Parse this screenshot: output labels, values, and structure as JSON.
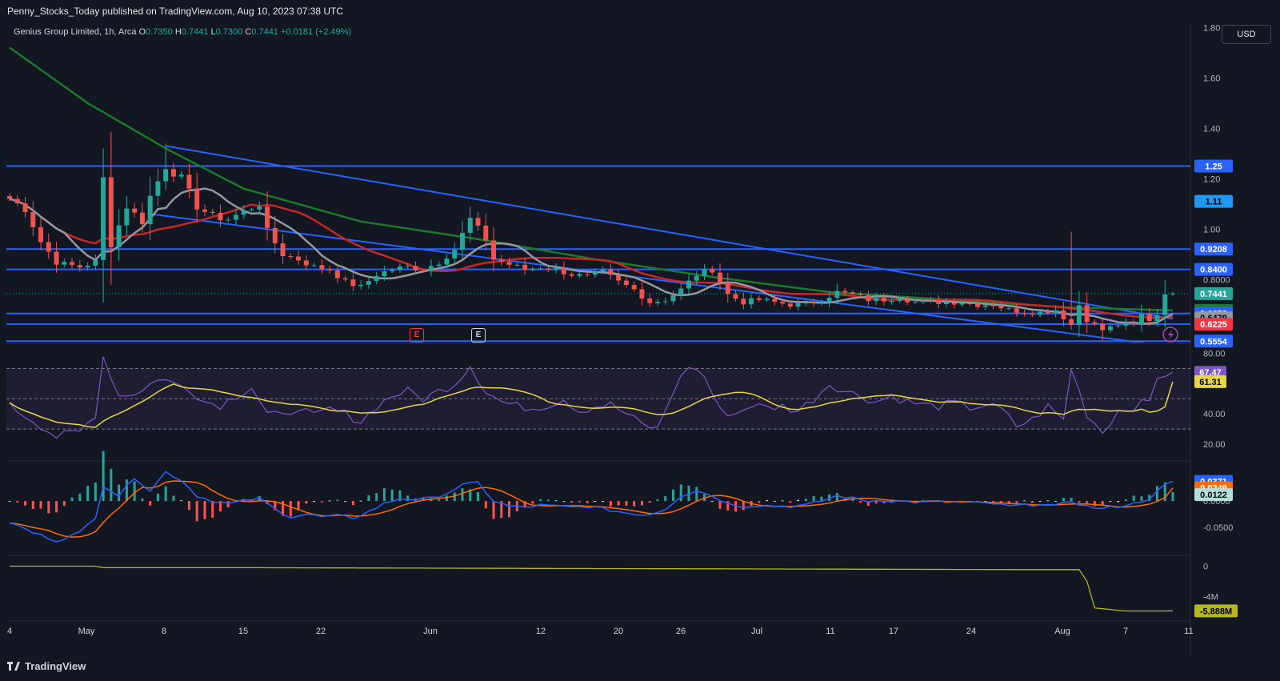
{
  "header": {
    "published": "Penny_Stocks_Today published on TradingView.com, Aug 10, 2023 07:38 UTC"
  },
  "legend": {
    "symbol": "Genius Group Limited, 1h, Arca",
    "o_label": "O",
    "o": "0.7350",
    "h_label": "H",
    "h": "0.7441",
    "l_label": "L",
    "l": "0.7300",
    "c_label": "C",
    "c": "0.7441",
    "change": "+0.0181 (+2.49%)"
  },
  "currency_button": "USD",
  "footer": {
    "brand": "TradingView"
  },
  "events": [
    {
      "label": "E",
      "x": 520,
      "y": 418,
      "color": "#f23645",
      "border": "#f23645"
    },
    {
      "label": "E",
      "x": 597,
      "y": 418,
      "color": "#d1d4dc",
      "border": "#d1d4dc"
    }
  ],
  "colors": {
    "up": "#26a69a",
    "down": "#ef5350",
    "ma_gray": "#9598a1",
    "ma_red": "#c62828",
    "ma_green": "#1b7a2c",
    "level": "#2962ff",
    "rsi": "#7e57c2",
    "rsi_ma": "#e6d643",
    "macd": "#2962ff",
    "signal": "#ff6d00",
    "volume_line": "#b5b71b"
  },
  "chart_data": {
    "type": "candlestick",
    "title": "Genius Group Limited, 1h, Arca",
    "x_tick_labels": [
      "4",
      "May",
      "8",
      "15",
      "22",
      "Jun",
      "12",
      "20",
      "26",
      "Jul",
      "11",
      "17",
      "24",
      "Aug",
      "7",
      "11"
    ],
    "y_axis_labels": [
      "1.80",
      "1.60",
      "1.40",
      "1.20",
      "1.00",
      "0.8000"
    ],
    "ylim": [
      0.55,
      1.82
    ],
    "horizontal_levels": [
      1.25,
      0.9208,
      0.84,
      0.6652,
      0.6225,
      0.5554
    ],
    "price_labels": [
      {
        "value": "1.25",
        "bg": "#2962ff",
        "fg": "#ffffff",
        "price": 1.25
      },
      {
        "value": "1.11",
        "bg": "#2196f3",
        "fg": "#000000",
        "price": 1.11
      },
      {
        "value": "0.9208",
        "bg": "#2962ff",
        "fg": "#ffffff",
        "price": 0.9208
      },
      {
        "value": "0.8400",
        "bg": "#2962ff",
        "fg": "#ffffff",
        "price": 0.84
      },
      {
        "value": "0.7441",
        "bg": "#26a69a",
        "fg": "#ffffff",
        "price": 0.7441
      },
      {
        "value": "0.6772",
        "bg": "#1b7a2c",
        "fg": "#ffffff",
        "price": 0.6772
      },
      {
        "value": "0.6652",
        "bg": "#2962ff",
        "fg": "#ffffff",
        "price": 0.6652
      },
      {
        "value": "0.6479",
        "bg": "#9598a1",
        "fg": "#000000",
        "price": 0.6479
      },
      {
        "value": "0.6225",
        "bg": "#f23645",
        "fg": "#ffffff",
        "price": 0.6225
      },
      {
        "value": "0.5554",
        "bg": "#2962ff",
        "fg": "#ffffff",
        "price": 0.5554
      }
    ],
    "close_anchors": [
      [
        0,
        1.12
      ],
      [
        2,
        1.08
      ],
      [
        4,
        0.95
      ],
      [
        6,
        0.87
      ],
      [
        7,
        0.86
      ],
      [
        9,
        0.85
      ],
      [
        11,
        0.87
      ],
      [
        12,
        1.2
      ],
      [
        13,
        0.94
      ],
      [
        15,
        1.09
      ],
      [
        17,
        1.03
      ],
      [
        18,
        1.13
      ],
      [
        20,
        1.25
      ],
      [
        22,
        1.2
      ],
      [
        24,
        1.09
      ],
      [
        26,
        1.05
      ],
      [
        28,
        1.04
      ],
      [
        30,
        1.07
      ],
      [
        32,
        1.1
      ],
      [
        33,
        0.99
      ],
      [
        35,
        0.9
      ],
      [
        37,
        0.88
      ],
      [
        39,
        0.85
      ],
      [
        41,
        0.84
      ],
      [
        43,
        0.79
      ],
      [
        45,
        0.77
      ],
      [
        47,
        0.82
      ],
      [
        49,
        0.84
      ],
      [
        51,
        0.85
      ],
      [
        53,
        0.84
      ],
      [
        55,
        0.87
      ],
      [
        57,
        0.92
      ],
      [
        59,
        1.04
      ],
      [
        61,
        0.96
      ],
      [
        62,
        0.88
      ],
      [
        64,
        0.86
      ],
      [
        66,
        0.84
      ],
      [
        68,
        0.85
      ],
      [
        70,
        0.84
      ],
      [
        72,
        0.82
      ],
      [
        74,
        0.81
      ],
      [
        76,
        0.83
      ],
      [
        78,
        0.79
      ],
      [
        80,
        0.76
      ],
      [
        82,
        0.71
      ],
      [
        84,
        0.72
      ],
      [
        86,
        0.76
      ],
      [
        88,
        0.82
      ],
      [
        90,
        0.84
      ],
      [
        92,
        0.74
      ],
      [
        94,
        0.71
      ],
      [
        96,
        0.72
      ],
      [
        98,
        0.71
      ],
      [
        100,
        0.7
      ],
      [
        102,
        0.7
      ],
      [
        104,
        0.72
      ],
      [
        106,
        0.75
      ],
      [
        108,
        0.74
      ],
      [
        110,
        0.72
      ],
      [
        112,
        0.72
      ],
      [
        114,
        0.73
      ],
      [
        116,
        0.71
      ],
      [
        118,
        0.71
      ],
      [
        120,
        0.71
      ],
      [
        122,
        0.71
      ],
      [
        124,
        0.7
      ],
      [
        126,
        0.7
      ],
      [
        128,
        0.68
      ],
      [
        130,
        0.67
      ],
      [
        132,
        0.67
      ],
      [
        134,
        0.68
      ],
      [
        136,
        0.62
      ],
      [
        137,
        0.7
      ],
      [
        138,
        0.64
      ],
      [
        140,
        0.6
      ],
      [
        142,
        0.62
      ],
      [
        144,
        0.62
      ],
      [
        145,
        0.66
      ],
      [
        146,
        0.64
      ],
      [
        147,
        0.66
      ],
      [
        148,
        0.75
      ],
      [
        149,
        0.7441
      ]
    ],
    "rsi": {
      "axis_labels": [
        "80.00",
        "40.00",
        "20.00"
      ],
      "ylim": [
        10,
        85
      ],
      "bands": [
        30,
        50,
        70
      ],
      "rsi_label": "67.47",
      "rsi_ma_label": "61.31",
      "anchors": [
        [
          0,
          45
        ],
        [
          3,
          36
        ],
        [
          6,
          25
        ],
        [
          9,
          28
        ],
        [
          11,
          40
        ],
        [
          12,
          78
        ],
        [
          14,
          52
        ],
        [
          17,
          55
        ],
        [
          19,
          64
        ],
        [
          21,
          60
        ],
        [
          23,
          57
        ],
        [
          25,
          48
        ],
        [
          27,
          46
        ],
        [
          29,
          52
        ],
        [
          31,
          58
        ],
        [
          33,
          40
        ],
        [
          35,
          38
        ],
        [
          37,
          45
        ],
        [
          39,
          38
        ],
        [
          41,
          43
        ],
        [
          43,
          40
        ],
        [
          45,
          35
        ],
        [
          47,
          45
        ],
        [
          49,
          52
        ],
        [
          51,
          55
        ],
        [
          53,
          50
        ],
        [
          55,
          55
        ],
        [
          57,
          60
        ],
        [
          59,
          72
        ],
        [
          61,
          55
        ],
        [
          63,
          48
        ],
        [
          65,
          45
        ],
        [
          67,
          44
        ],
        [
          69,
          46
        ],
        [
          71,
          50
        ],
        [
          73,
          42
        ],
        [
          75,
          45
        ],
        [
          77,
          46
        ],
        [
          79,
          40
        ],
        [
          81,
          33
        ],
        [
          83,
          30
        ],
        [
          85,
          55
        ],
        [
          87,
          72
        ],
        [
          89,
          65
        ],
        [
          91,
          42
        ],
        [
          93,
          40
        ],
        [
          95,
          46
        ],
        [
          97,
          44
        ],
        [
          99,
          45
        ],
        [
          101,
          42
        ],
        [
          103,
          50
        ],
        [
          105,
          60
        ],
        [
          107,
          55
        ],
        [
          109,
          52
        ],
        [
          111,
          48
        ],
        [
          113,
          52
        ],
        [
          115,
          48
        ],
        [
          117,
          46
        ],
        [
          119,
          45
        ],
        [
          121,
          47
        ],
        [
          123,
          44
        ],
        [
          125,
          46
        ],
        [
          127,
          43
        ],
        [
          129,
          32
        ],
        [
          131,
          36
        ],
        [
          133,
          45
        ],
        [
          135,
          36
        ],
        [
          136,
          70
        ],
        [
          138,
          40
        ],
        [
          140,
          28
        ],
        [
          142,
          42
        ],
        [
          144,
          45
        ],
        [
          146,
          48
        ],
        [
          147,
          65
        ],
        [
          149,
          67.47
        ]
      ]
    },
    "macd": {
      "axis_labels": [
        "0.0000",
        "-0.0500"
      ],
      "ylim": [
        -0.1,
        0.07
      ],
      "macd_label": "0.0371",
      "signal_label": "0.0249",
      "histogram_label": "0.0122",
      "anchors": [
        [
          0,
          -0.04
        ],
        [
          3,
          -0.06
        ],
        [
          6,
          -0.075
        ],
        [
          9,
          -0.06
        ],
        [
          11,
          -0.03
        ],
        [
          12,
          0.03
        ],
        [
          14,
          0.01
        ],
        [
          16,
          0.045
        ],
        [
          18,
          0.02
        ],
        [
          20,
          0.055
        ],
        [
          22,
          0.04
        ],
        [
          24,
          0.01
        ],
        [
          26,
          0.0
        ],
        [
          28,
          -0.005
        ],
        [
          30,
          0.0
        ],
        [
          32,
          0.005
        ],
        [
          34,
          -0.015
        ],
        [
          36,
          -0.03
        ],
        [
          38,
          -0.025
        ],
        [
          40,
          -0.03
        ],
        [
          42,
          -0.028
        ],
        [
          44,
          -0.032
        ],
        [
          46,
          -0.02
        ],
        [
          48,
          -0.005
        ],
        [
          50,
          0.005
        ],
        [
          52,
          0.003
        ],
        [
          54,
          0.005
        ],
        [
          56,
          0.015
        ],
        [
          58,
          0.03
        ],
        [
          60,
          0.035
        ],
        [
          62,
          0.0
        ],
        [
          64,
          -0.01
        ],
        [
          66,
          -0.012
        ],
        [
          68,
          -0.008
        ],
        [
          70,
          -0.01
        ],
        [
          72,
          -0.012
        ],
        [
          74,
          -0.01
        ],
        [
          76,
          -0.015
        ],
        [
          78,
          -0.02
        ],
        [
          80,
          -0.025
        ],
        [
          82,
          -0.025
        ],
        [
          84,
          -0.015
        ],
        [
          86,
          0.01
        ],
        [
          88,
          0.02
        ],
        [
          90,
          0.01
        ],
        [
          92,
          -0.005
        ],
        [
          94,
          -0.01
        ],
        [
          96,
          -0.008
        ],
        [
          98,
          -0.009
        ],
        [
          100,
          -0.01
        ],
        [
          102,
          -0.008
        ],
        [
          104,
          0.0
        ],
        [
          106,
          0.01
        ],
        [
          108,
          0.005
        ],
        [
          110,
          0.0
        ],
        [
          112,
          0.002
        ],
        [
          114,
          0.0
        ],
        [
          116,
          -0.002
        ],
        [
          118,
          -0.001
        ],
        [
          120,
          -0.002
        ],
        [
          122,
          -0.003
        ],
        [
          124,
          -0.004
        ],
        [
          126,
          -0.005
        ],
        [
          128,
          -0.01
        ],
        [
          130,
          -0.008
        ],
        [
          132,
          -0.005
        ],
        [
          134,
          -0.01
        ],
        [
          136,
          0.0
        ],
        [
          138,
          -0.01
        ],
        [
          140,
          -0.015
        ],
        [
          142,
          -0.01
        ],
        [
          144,
          -0.005
        ],
        [
          146,
          0.005
        ],
        [
          148,
          0.03
        ],
        [
          149,
          0.0371
        ]
      ]
    },
    "volume_line": {
      "axis_labels": [
        "0",
        "-4M"
      ],
      "ylim": [
        -7,
        1
      ],
      "last_label": "-5.888M",
      "anchors": [
        [
          0,
          0.0
        ],
        [
          11,
          0.0
        ],
        [
          12,
          -0.2
        ],
        [
          30,
          -0.2
        ],
        [
          50,
          -0.25
        ],
        [
          70,
          -0.3
        ],
        [
          90,
          -0.35
        ],
        [
          110,
          -0.4
        ],
        [
          130,
          -0.45
        ],
        [
          137,
          -0.45
        ],
        [
          138,
          -2.0
        ],
        [
          139,
          -5.5
        ],
        [
          143,
          -5.9
        ],
        [
          149,
          -5.888
        ]
      ]
    }
  }
}
